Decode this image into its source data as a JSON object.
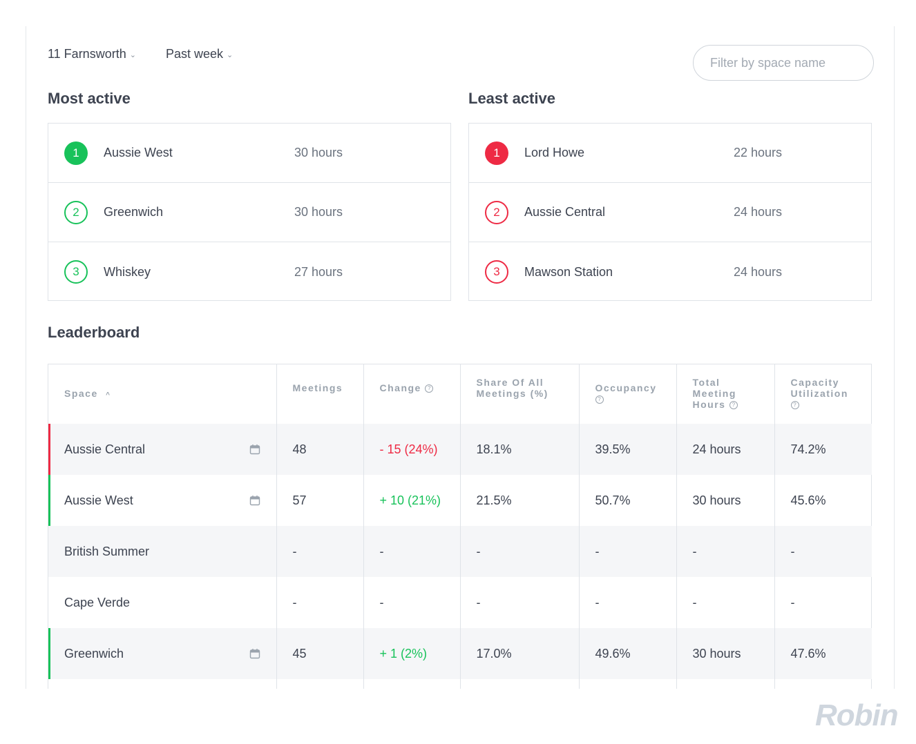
{
  "filters": {
    "location": "11 Farnsworth",
    "period": "Past week",
    "search_placeholder": "Filter by space name"
  },
  "most_active": {
    "title": "Most active",
    "items": [
      {
        "rank": "1",
        "name": "Aussie West",
        "hours": "30 hours"
      },
      {
        "rank": "2",
        "name": "Greenwich",
        "hours": "30 hours"
      },
      {
        "rank": "3",
        "name": "Whiskey",
        "hours": "27 hours"
      }
    ]
  },
  "least_active": {
    "title": "Least active",
    "items": [
      {
        "rank": "1",
        "name": "Lord Howe",
        "hours": "22 hours"
      },
      {
        "rank": "2",
        "name": "Aussie Central",
        "hours": "24 hours"
      },
      {
        "rank": "3",
        "name": "Mawson Station",
        "hours": "24 hours"
      }
    ]
  },
  "leaderboard": {
    "title": "Leaderboard",
    "headers": {
      "space": "Space",
      "meetings": "Meetings",
      "change": "Change",
      "share_l1": "Share Of All",
      "share_l2": "Meetings (%)",
      "occupancy": "Occupancy",
      "tmh_l1": "Total",
      "tmh_l2": "Meeting",
      "tmh_l3": "Hours",
      "cap_l1": "Capacity",
      "cap_l2": "Utilization"
    },
    "help_glyph": "?",
    "sort_glyph": "^",
    "rows": [
      {
        "space": "Aussie Central",
        "meetings": "48",
        "change": "- 15 (24%)",
        "share": "18.1%",
        "occupancy": "39.5%",
        "hours": "24 hours",
        "capacity": "74.2%"
      },
      {
        "space": "Aussie West",
        "meetings": "57",
        "change": "+ 10 (21%)",
        "share": "21.5%",
        "occupancy": "50.7%",
        "hours": "30 hours",
        "capacity": "45.6%"
      },
      {
        "space": "British Summer",
        "meetings": "-",
        "change": "-",
        "share": "-",
        "occupancy": "-",
        "hours": "-",
        "capacity": "-"
      },
      {
        "space": "Cape Verde",
        "meetings": "-",
        "change": "-",
        "share": "-",
        "occupancy": "-",
        "hours": "-",
        "capacity": "-"
      },
      {
        "space": "Greenwich",
        "meetings": "45",
        "change": "+ 1 (2%)",
        "share": "17.0%",
        "occupancy": "49.6%",
        "hours": "30 hours",
        "capacity": "47.6%"
      }
    ]
  },
  "brand": {
    "logo": "Robin"
  },
  "colors": {
    "positive": "#18c25a",
    "negative": "#ee2a44",
    "muted": "#9aa3ad"
  }
}
